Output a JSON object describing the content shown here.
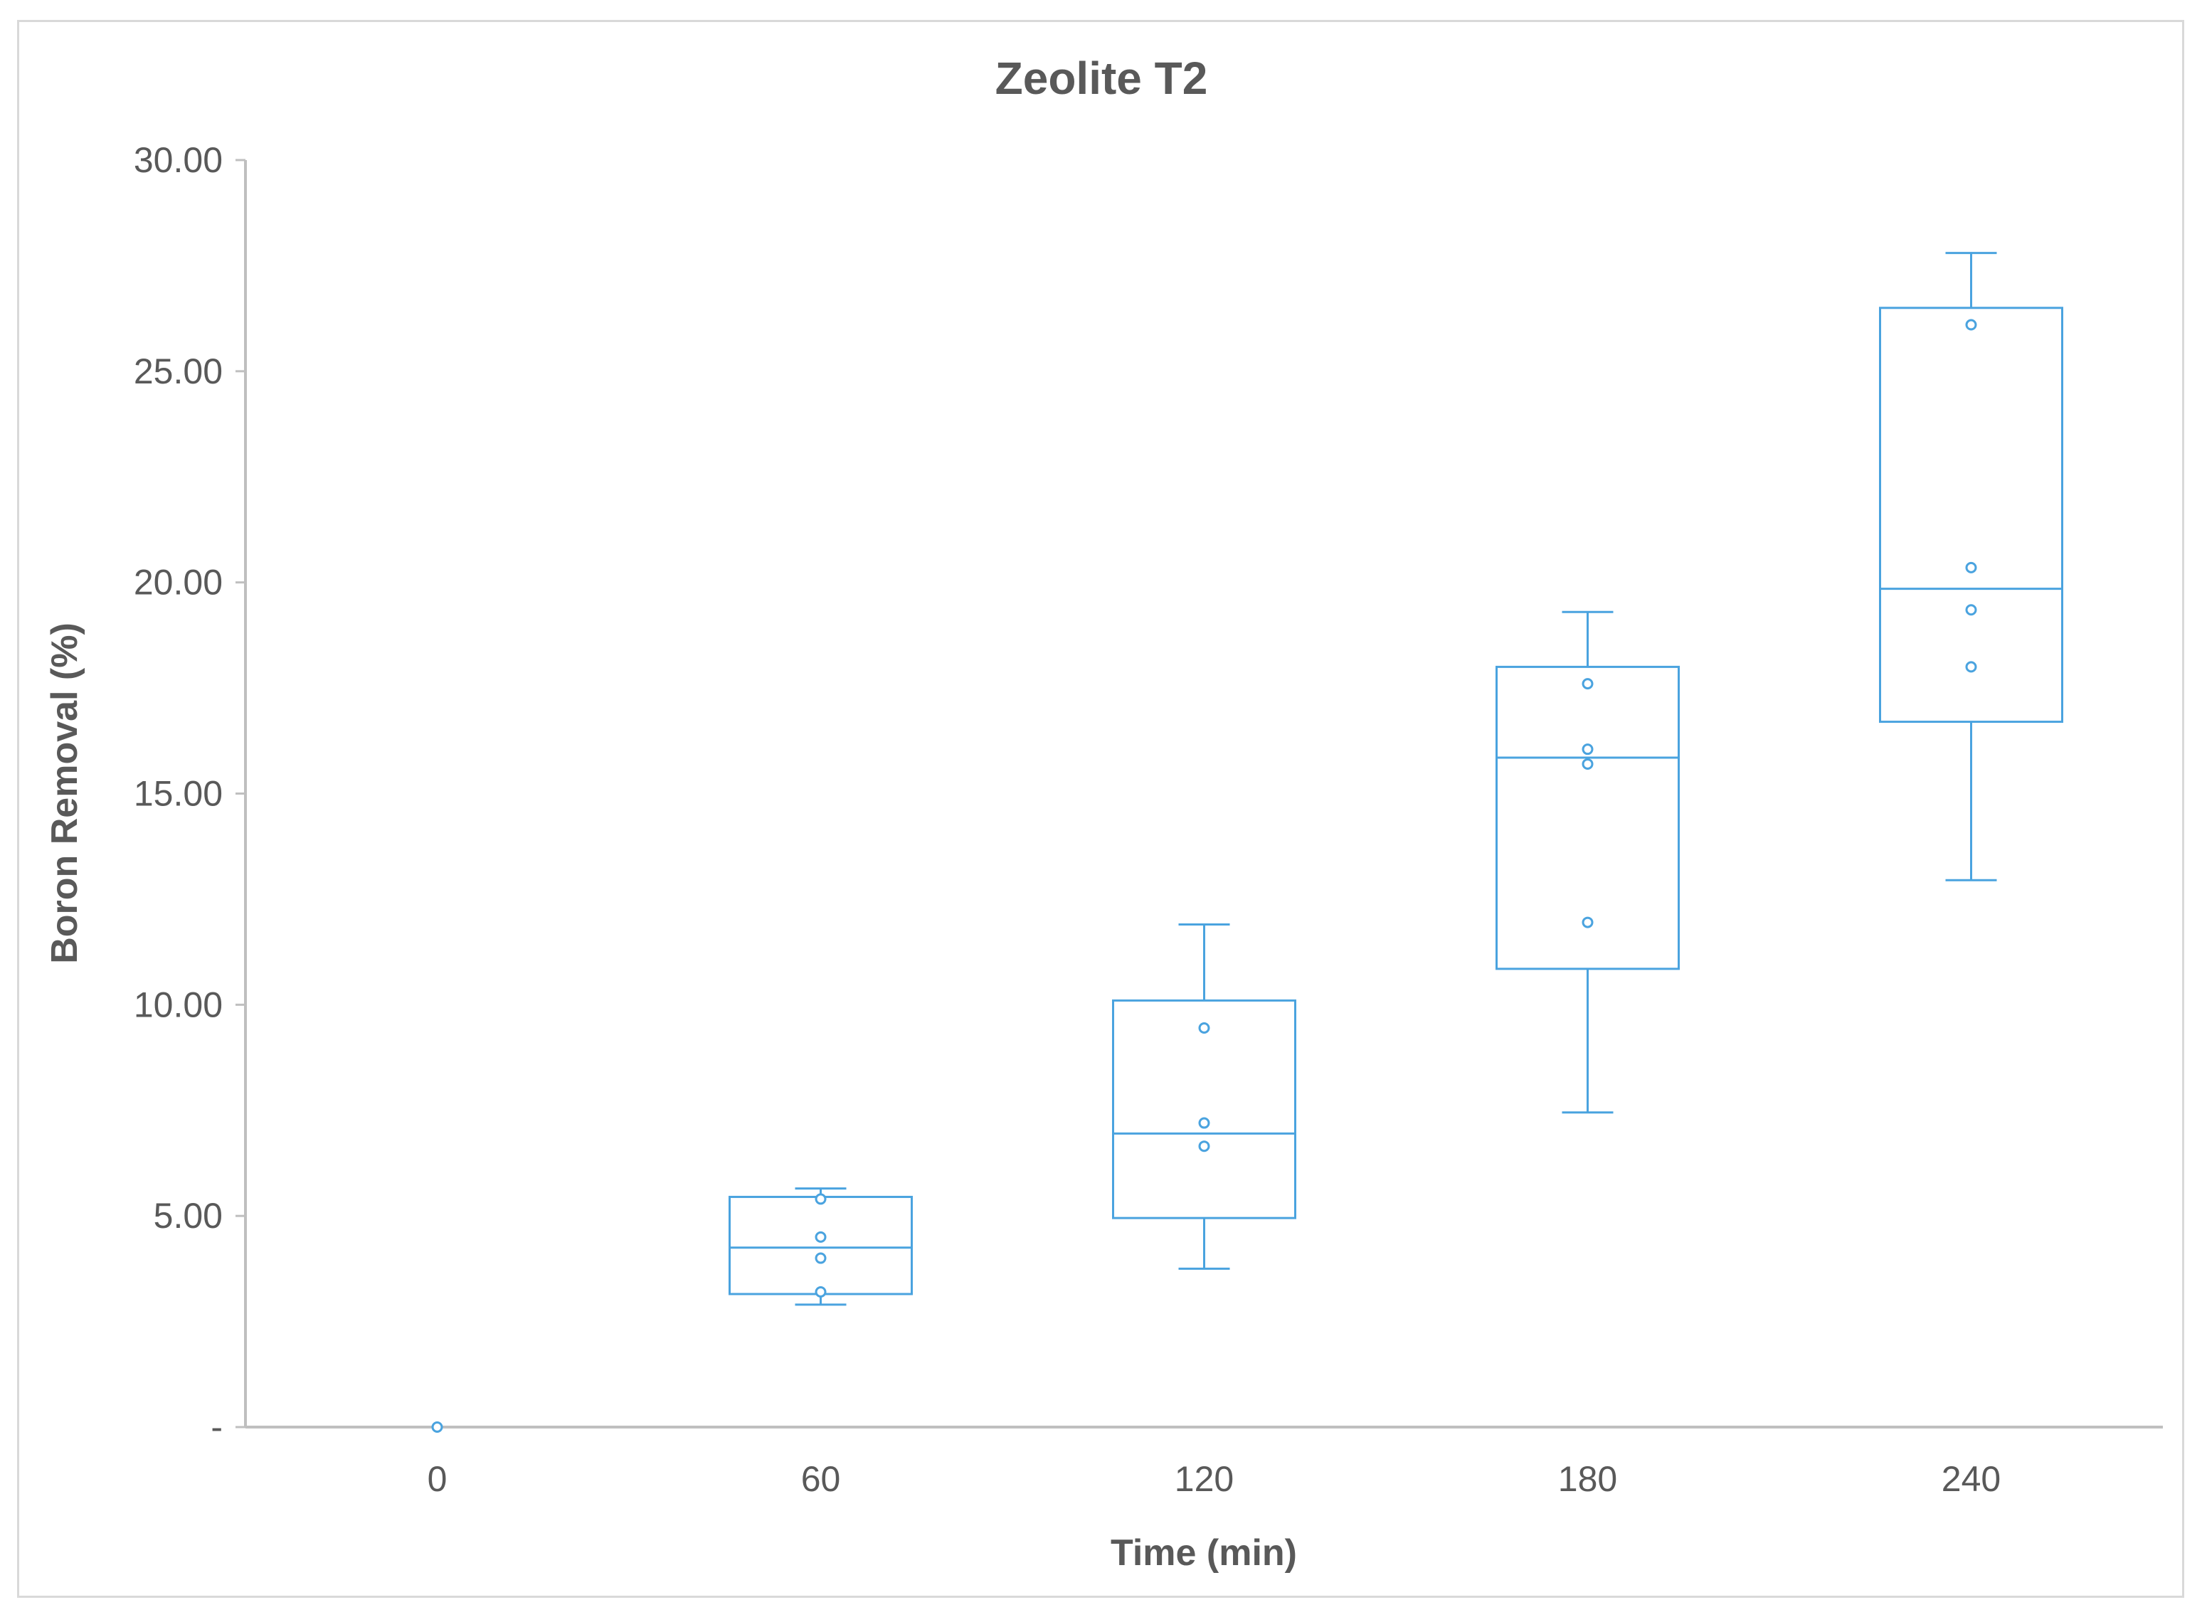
{
  "chart_data": {
    "type": "box",
    "title": "Zeolite T2",
    "xlabel": "Time (min)",
    "ylabel": "Boron Removal (%)",
    "ylim": [
      0,
      30
    ],
    "yticks": [
      {
        "value": 0,
        "label": "-"
      },
      {
        "value": 5,
        "label": "5.00"
      },
      {
        "value": 10,
        "label": "10.00"
      },
      {
        "value": 15,
        "label": "15.00"
      },
      {
        "value": 20,
        "label": "20.00"
      },
      {
        "value": 25,
        "label": "25.00"
      },
      {
        "value": 30,
        "label": "30.00"
      }
    ],
    "categories": [
      "0",
      "60",
      "120",
      "180",
      "240"
    ],
    "boxes": [
      {
        "category": "0",
        "min": 0,
        "q1": 0,
        "median": 0,
        "q3": 0,
        "max": 0,
        "points": [
          0
        ]
      },
      {
        "category": "60",
        "min": 2.9,
        "q1": 3.15,
        "median": 4.25,
        "q3": 5.45,
        "max": 5.65,
        "points": [
          3.2,
          4.0,
          4.5,
          5.4
        ]
      },
      {
        "category": "120",
        "min": 3.75,
        "q1": 4.95,
        "median": 6.95,
        "q3": 10.1,
        "max": 11.9,
        "points": [
          6.65,
          7.2,
          9.45
        ]
      },
      {
        "category": "180",
        "min": 7.45,
        "q1": 10.85,
        "median": 15.85,
        "q3": 18.0,
        "max": 19.3,
        "points": [
          11.95,
          15.7,
          16.05,
          17.6
        ]
      },
      {
        "category": "240",
        "min": 12.95,
        "q1": 16.7,
        "median": 19.85,
        "q3": 26.5,
        "max": 27.8,
        "points": [
          18.0,
          19.35,
          20.35,
          26.1
        ]
      }
    ],
    "grid": false,
    "legend": "none",
    "colors": {
      "series": "#4aa3df",
      "axis": "#bfbfbf",
      "text": "#595959"
    }
  }
}
